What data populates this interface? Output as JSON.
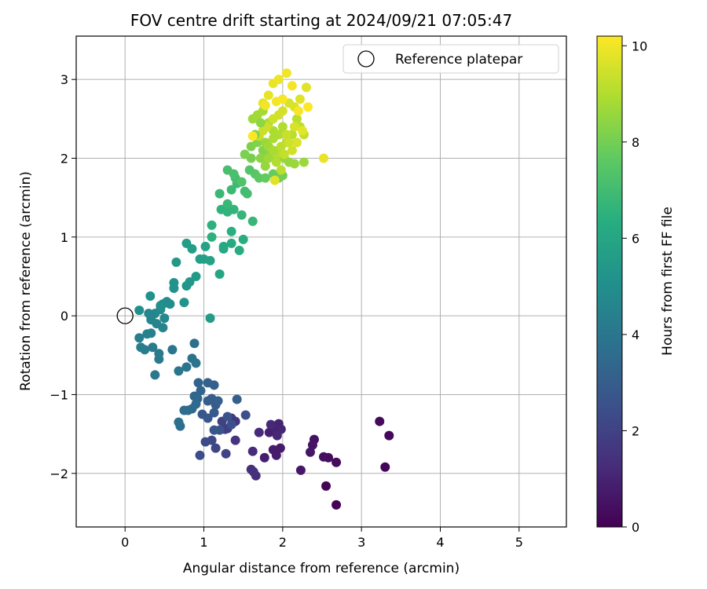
{
  "chart_data": {
    "type": "scatter",
    "title": "FOV centre drift starting at 2024/09/21 07:05:47",
    "xlabel": "Angular distance from reference (arcmin)",
    "ylabel": "Rotation from reference (arcmin)",
    "xlim": [
      -0.62,
      5.6
    ],
    "ylim": [
      -2.68,
      3.55
    ],
    "xticks": [
      0,
      1,
      2,
      3,
      4,
      5
    ],
    "yticks": [
      -2,
      -1,
      0,
      1,
      2,
      3
    ],
    "grid": true,
    "legend": {
      "placement": "top-right",
      "label": "Reference platepar"
    },
    "reference_point": {
      "x": 0,
      "y": 0
    },
    "colorbar": {
      "label": "Hours from first FF file",
      "range": [
        0,
        10.2
      ],
      "ticks": [
        0,
        2,
        4,
        6,
        8,
        10
      ],
      "colormap": "viridis"
    },
    "series": [
      {
        "points": [
          [
            2.68,
            -2.4
          ],
          [
            2.55,
            -2.16
          ],
          [
            3.3,
            -1.92
          ],
          [
            3.35,
            -1.52
          ],
          [
            3.23,
            -1.34
          ],
          [
            2.68,
            -1.86
          ],
          [
            2.58,
            -1.8
          ],
          [
            2.52,
            -1.79
          ],
          [
            2.4,
            -1.57
          ],
          [
            2.38,
            -1.64
          ],
          [
            2.35,
            -1.73
          ],
          [
            2.23,
            -1.96
          ],
          [
            1.97,
            -1.68
          ],
          [
            1.88,
            -1.7
          ],
          [
            1.92,
            -1.77
          ],
          [
            1.77,
            -1.8
          ],
          [
            1.83,
            -1.48
          ],
          [
            1.9,
            -1.43
          ],
          [
            1.95,
            -1.37
          ],
          [
            1.98,
            -1.44
          ],
          [
            1.93,
            -1.52
          ],
          [
            1.85,
            -1.38
          ],
          [
            1.7,
            -1.48
          ],
          [
            1.62,
            -1.72
          ],
          [
            1.66,
            -2.03
          ],
          [
            1.6,
            -1.95
          ],
          [
            1.63,
            -1.98
          ],
          [
            1.4,
            -1.58
          ],
          [
            1.4,
            -1.34
          ],
          [
            1.35,
            -1.3
          ],
          [
            1.3,
            -1.43
          ],
          [
            1.27,
            -1.44
          ],
          [
            1.23,
            -1.34
          ],
          [
            1.28,
            -1.75
          ],
          [
            1.15,
            -1.68
          ],
          [
            1.1,
            -1.58
          ],
          [
            1.02,
            -1.6
          ],
          [
            0.95,
            -1.77
          ],
          [
            1.53,
            -1.26
          ],
          [
            1.35,
            -1.38
          ],
          [
            1.3,
            -1.28
          ],
          [
            1.2,
            -1.45
          ],
          [
            1.13,
            -1.45
          ],
          [
            1.05,
            -1.3
          ],
          [
            0.98,
            -1.25
          ],
          [
            1.13,
            -1.23
          ],
          [
            1.15,
            -1.13
          ],
          [
            1.05,
            -1.08
          ],
          [
            1.1,
            -1.05
          ],
          [
            1.18,
            -1.08
          ],
          [
            1.42,
            -1.06
          ],
          [
            1.13,
            -0.88
          ],
          [
            1.05,
            -0.85
          ],
          [
            0.93,
            -0.85
          ],
          [
            0.96,
            -0.95
          ],
          [
            0.92,
            -1.05
          ],
          [
            0.88,
            -1.02
          ],
          [
            0.85,
            -1.18
          ],
          [
            0.9,
            -1.12
          ],
          [
            0.8,
            -1.2
          ],
          [
            0.75,
            -1.2
          ],
          [
            0.7,
            -1.4
          ],
          [
            0.68,
            -1.35
          ],
          [
            0.88,
            -0.35
          ],
          [
            0.85,
            -0.54
          ],
          [
            0.9,
            -0.6
          ],
          [
            0.78,
            -0.65
          ],
          [
            0.68,
            -0.7
          ],
          [
            0.6,
            -0.43
          ],
          [
            0.38,
            -0.75
          ],
          [
            0.43,
            -0.55
          ],
          [
            0.43,
            -0.48
          ],
          [
            0.35,
            -0.4
          ],
          [
            0.25,
            -0.43
          ],
          [
            0.2,
            -0.4
          ],
          [
            0.18,
            -0.28
          ],
          [
            0.28,
            -0.23
          ],
          [
            0.33,
            -0.22
          ],
          [
            0.4,
            -0.1
          ],
          [
            0.48,
            -0.15
          ],
          [
            0.33,
            -0.05
          ],
          [
            0.3,
            0.03
          ],
          [
            0.38,
            0.03
          ],
          [
            0.5,
            -0.03
          ],
          [
            0.45,
            0.08
          ],
          [
            0.48,
            0.15
          ],
          [
            0.57,
            0.15
          ],
          [
            0.53,
            0.18
          ],
          [
            0.45,
            0.13
          ],
          [
            0.18,
            0.07
          ],
          [
            0.32,
            0.25
          ],
          [
            0.62,
            0.35
          ],
          [
            0.62,
            0.42
          ],
          [
            0.75,
            0.17
          ],
          [
            0.78,
            0.38
          ],
          [
            0.82,
            0.43
          ],
          [
            0.65,
            0.68
          ],
          [
            0.9,
            0.5
          ],
          [
            1.08,
            -0.03
          ],
          [
            0.78,
            0.92
          ],
          [
            0.85,
            0.85
          ],
          [
            0.95,
            0.72
          ],
          [
            1.0,
            0.72
          ],
          [
            1.08,
            0.7
          ],
          [
            1.02,
            0.88
          ],
          [
            1.2,
            0.53
          ],
          [
            1.25,
            0.85
          ],
          [
            1.25,
            0.88
          ],
          [
            1.35,
            0.92
          ],
          [
            1.45,
            0.83
          ],
          [
            1.5,
            0.97
          ],
          [
            1.35,
            1.07
          ],
          [
            1.1,
            1.0
          ],
          [
            1.1,
            1.15
          ],
          [
            1.22,
            1.35
          ],
          [
            1.3,
            1.32
          ],
          [
            1.38,
            1.35
          ],
          [
            1.48,
            1.28
          ],
          [
            1.62,
            1.2
          ],
          [
            1.3,
            1.42
          ],
          [
            1.2,
            1.55
          ],
          [
            1.35,
            1.6
          ],
          [
            1.42,
            1.68
          ],
          [
            1.52,
            1.58
          ],
          [
            1.55,
            1.55
          ],
          [
            1.4,
            1.75
          ],
          [
            1.3,
            1.85
          ],
          [
            1.38,
            1.8
          ],
          [
            1.48,
            1.7
          ],
          [
            1.58,
            1.85
          ],
          [
            1.65,
            1.8
          ],
          [
            1.7,
            1.75
          ],
          [
            1.78,
            1.75
          ],
          [
            1.88,
            1.8
          ],
          [
            1.95,
            1.75
          ],
          [
            2.0,
            1.78
          ],
          [
            1.6,
            2.0
          ],
          [
            1.52,
            2.05
          ],
          [
            1.6,
            2.15
          ],
          [
            1.68,
            2.2
          ],
          [
            1.75,
            2.1
          ],
          [
            1.8,
            2.0
          ],
          [
            1.85,
            2.05
          ],
          [
            1.9,
            2.0
          ],
          [
            1.95,
            2.1
          ],
          [
            2.02,
            2.0
          ],
          [
            2.08,
            1.95
          ],
          [
            2.15,
            1.93
          ],
          [
            2.27,
            1.95
          ],
          [
            1.62,
            2.5
          ],
          [
            1.68,
            2.55
          ],
          [
            1.75,
            2.6
          ],
          [
            1.82,
            2.45
          ],
          [
            1.88,
            2.35
          ],
          [
            1.95,
            2.3
          ],
          [
            2.0,
            2.4
          ],
          [
            2.05,
            2.2
          ],
          [
            2.12,
            2.3
          ],
          [
            2.18,
            2.5
          ],
          [
            2.22,
            2.4
          ],
          [
            2.27,
            2.3
          ],
          [
            1.7,
            2.28
          ],
          [
            1.75,
            2.35
          ],
          [
            1.8,
            2.4
          ],
          [
            1.88,
            2.5
          ],
          [
            1.95,
            2.55
          ],
          [
            2.0,
            2.6
          ],
          [
            2.08,
            2.7
          ],
          [
            2.15,
            2.65
          ],
          [
            2.22,
            2.75
          ],
          [
            2.3,
            2.9
          ],
          [
            1.75,
            2.7
          ],
          [
            1.82,
            2.8
          ],
          [
            1.88,
            2.95
          ],
          [
            1.95,
            3.0
          ],
          [
            2.05,
            3.08
          ],
          [
            2.12,
            2.92
          ],
          [
            2.2,
            2.6
          ],
          [
            2.32,
            2.65
          ],
          [
            1.65,
            2.3
          ],
          [
            1.72,
            2.45
          ],
          [
            1.78,
            2.2
          ],
          [
            1.82,
            2.15
          ],
          [
            1.88,
            2.25
          ],
          [
            1.92,
            2.05
          ],
          [
            1.98,
            2.15
          ],
          [
            2.05,
            2.3
          ],
          [
            2.12,
            2.1
          ],
          [
            2.18,
            2.2
          ],
          [
            2.25,
            2.35
          ],
          [
            1.72,
            2.0
          ],
          [
            1.78,
            1.9
          ],
          [
            1.82,
            2.0
          ],
          [
            1.88,
            2.1
          ],
          [
            1.92,
            1.95
          ],
          [
            1.98,
            1.85
          ],
          [
            2.02,
            2.05
          ],
          [
            2.08,
            2.2
          ],
          [
            2.15,
            2.4
          ],
          [
            2.52,
            2.0
          ],
          [
            1.9,
            1.72
          ],
          [
            1.78,
            2.67
          ],
          [
            1.92,
            2.72
          ],
          [
            2.0,
            2.75
          ],
          [
            1.62,
            2.28
          ]
        ],
        "hours": [
          0.05,
          0.1,
          0.15,
          0.2,
          0.25,
          0.3,
          0.35,
          0.4,
          0.5,
          0.55,
          0.6,
          0.65,
          0.7,
          0.75,
          0.8,
          0.85,
          0.9,
          0.95,
          1.0,
          1.05,
          1.1,
          1.15,
          1.2,
          1.25,
          1.3,
          1.35,
          1.4,
          1.5,
          1.6,
          1.7,
          1.8,
          1.9,
          2.0,
          2.05,
          2.1,
          2.2,
          2.3,
          2.4,
          2.45,
          2.5,
          2.55,
          2.6,
          2.7,
          2.75,
          2.8,
          2.85,
          2.9,
          2.95,
          3.0,
          3.05,
          3.1,
          3.15,
          3.2,
          3.25,
          3.3,
          3.35,
          3.4,
          3.45,
          3.5,
          3.55,
          3.6,
          3.65,
          3.7,
          3.75,
          3.8,
          3.85,
          3.9,
          3.95,
          4.0,
          4.05,
          4.1,
          4.15,
          4.2,
          4.25,
          4.3,
          4.35,
          4.4,
          4.45,
          4.5,
          4.55,
          4.6,
          4.65,
          4.7,
          4.75,
          4.8,
          4.85,
          4.9,
          4.95,
          5.0,
          5.05,
          5.1,
          5.15,
          5.2,
          5.25,
          5.3,
          5.35,
          5.4,
          5.5,
          5.55,
          5.6,
          5.65,
          5.7,
          5.75,
          5.8,
          5.9,
          6.0,
          6.05,
          6.1,
          6.2,
          6.3,
          6.35,
          6.4,
          6.45,
          6.5,
          6.55,
          6.6,
          6.65,
          6.7,
          6.75,
          6.8,
          6.85,
          6.9,
          6.95,
          7.0,
          7.05,
          7.1,
          7.15,
          7.2,
          7.3,
          7.4,
          7.5,
          7.6,
          7.7,
          7.8,
          7.9,
          8.0,
          8.05,
          8.1,
          8.15,
          8.2,
          8.25,
          8.3,
          8.35,
          8.4,
          8.45,
          8.5,
          8.55,
          8.6,
          8.65,
          8.7,
          8.75,
          8.8,
          8.85,
          8.9,
          8.95,
          9.0,
          9.05,
          9.1,
          9.15,
          9.2,
          9.25,
          9.3,
          9.35,
          9.4,
          9.45,
          9.5,
          9.55,
          9.6,
          9.65,
          9.7,
          9.75,
          9.8,
          9.85,
          9.9,
          9.95,
          10.0,
          10.05,
          10.1,
          10.15,
          8.3,
          8.45,
          8.6,
          8.75,
          8.9,
          9.05,
          9.2,
          9.35,
          9.5,
          9.65,
          9.8,
          8.4,
          8.55,
          8.7,
          8.85,
          9.0,
          9.15,
          9.3,
          9.45,
          9.6,
          9.9,
          9.75,
          10.0,
          10.05,
          10.1,
          10.2
        ]
      }
    ]
  }
}
